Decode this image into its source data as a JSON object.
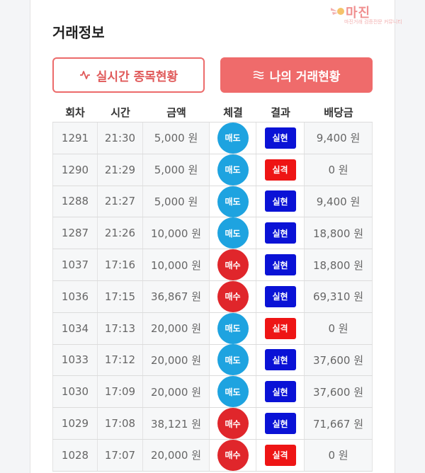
{
  "section_title": "거래정보",
  "watermark": {
    "brand": "마진",
    "tagline": "마진거래 검증전문 커뮤니티"
  },
  "buttons": {
    "live_label": "실시간 종목현황",
    "mine_label": "나의 거래현황"
  },
  "columns": [
    "회차",
    "시간",
    "금액",
    "체결",
    "결과",
    "배당금"
  ],
  "rows": [
    {
      "no": "1291",
      "time": "21:30",
      "amount": "5,000 원",
      "dir": "매도",
      "result": "실현",
      "payout": "9,400 원"
    },
    {
      "no": "1290",
      "time": "21:29",
      "amount": "5,000 원",
      "dir": "매도",
      "result": "실격",
      "payout": "0 원"
    },
    {
      "no": "1288",
      "time": "21:27",
      "amount": "5,000 원",
      "dir": "매도",
      "result": "실현",
      "payout": "9,400 원"
    },
    {
      "no": "1287",
      "time": "21:26",
      "amount": "10,000 원",
      "dir": "매도",
      "result": "실현",
      "payout": "18,800 원"
    },
    {
      "no": "1037",
      "time": "17:16",
      "amount": "10,000 원",
      "dir": "매수",
      "result": "실현",
      "payout": "18,800 원"
    },
    {
      "no": "1036",
      "time": "17:15",
      "amount": "36,867 원",
      "dir": "매수",
      "result": "실현",
      "payout": "69,310 원"
    },
    {
      "no": "1034",
      "time": "17:13",
      "amount": "20,000 원",
      "dir": "매도",
      "result": "실격",
      "payout": "0 원"
    },
    {
      "no": "1033",
      "time": "17:12",
      "amount": "20,000 원",
      "dir": "매도",
      "result": "실현",
      "payout": "37,600 원"
    },
    {
      "no": "1030",
      "time": "17:09",
      "amount": "20,000 원",
      "dir": "매도",
      "result": "실현",
      "payout": "37,600 원"
    },
    {
      "no": "1029",
      "time": "17:08",
      "amount": "38,121 원",
      "dir": "매수",
      "result": "실현",
      "payout": "71,667 원"
    },
    {
      "no": "1028",
      "time": "17:07",
      "amount": "20,000 원",
      "dir": "매수",
      "result": "실격",
      "payout": "0 원"
    }
  ],
  "colors": {
    "accent": "#ef6b6b",
    "sell": "#1ea3e0",
    "buy": "#e0262b",
    "win": "#0a12d6",
    "lose": "#ee1515"
  }
}
